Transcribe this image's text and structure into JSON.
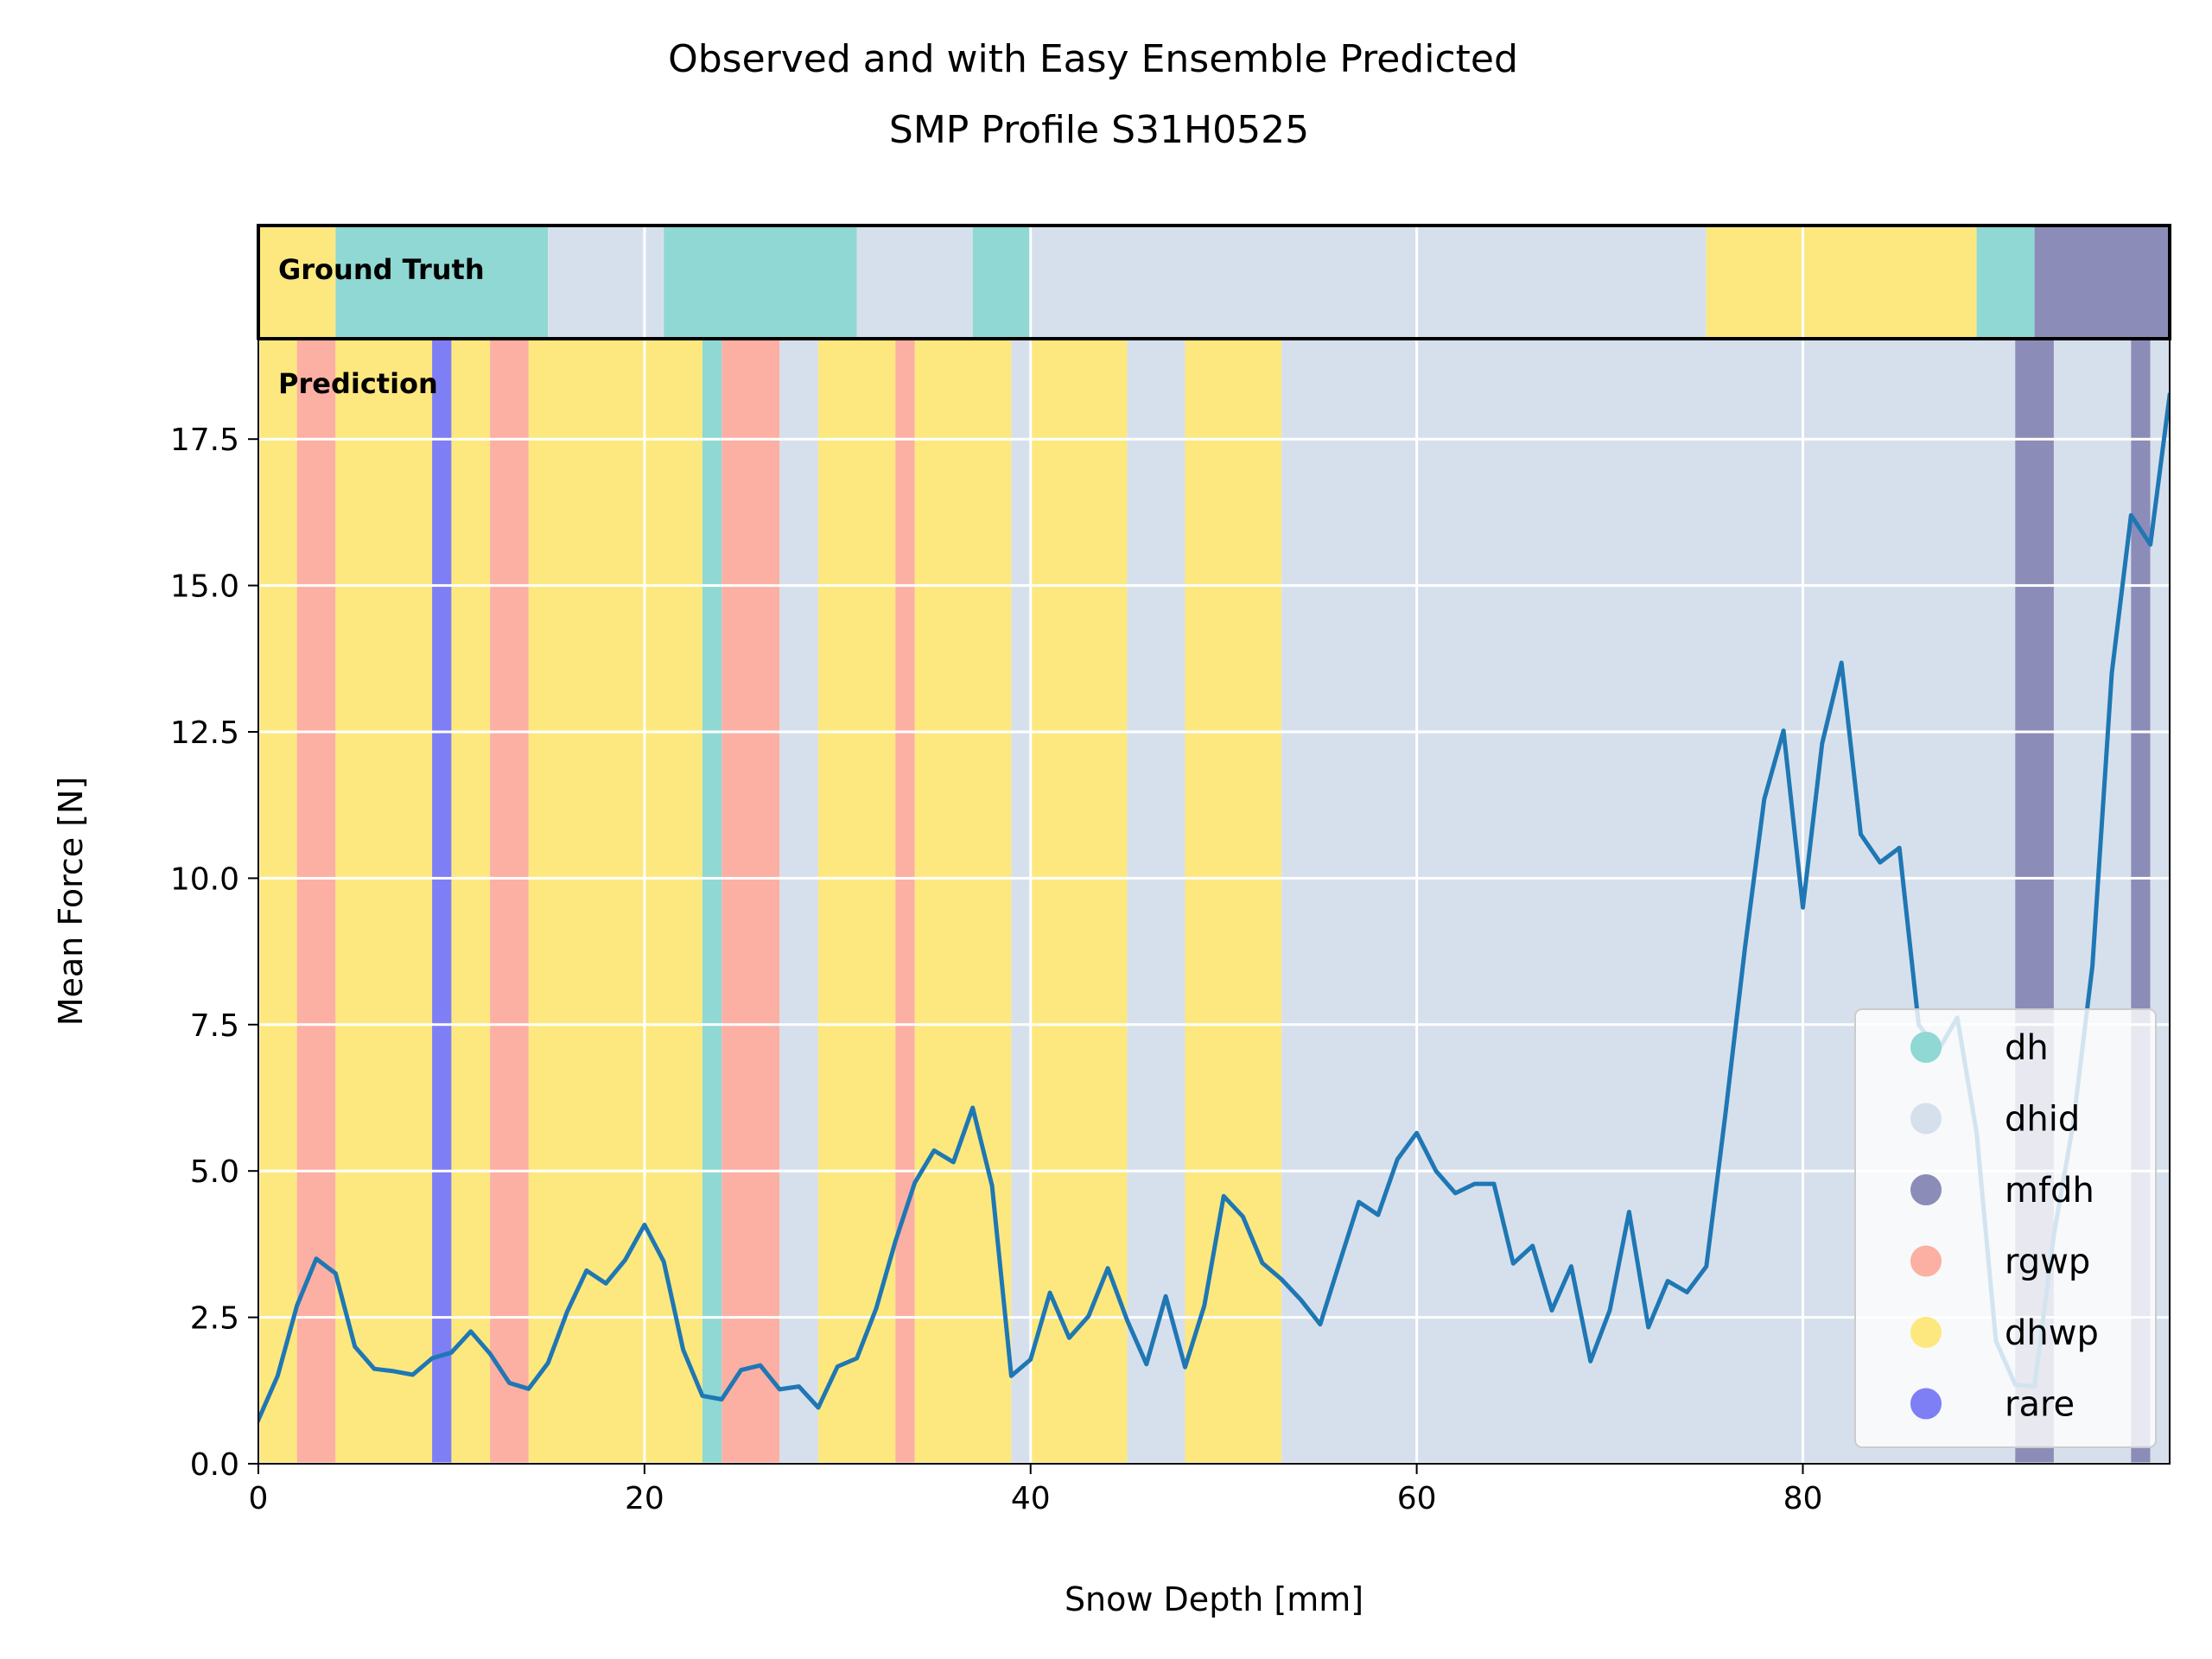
{
  "chart_data": {
    "type": "line",
    "title": "Observed and with Easy Ensemble Predicted\nSMP Profile S31H0525",
    "xlabel": "Snow Depth [mm]",
    "ylabel": "Mean Force [N]",
    "xlim": [
      0,
      99
    ],
    "ylim": [
      0,
      19.2
    ],
    "grid": true,
    "xticks": [
      0,
      20,
      40,
      60,
      80
    ],
    "xtick_labels": [
      "0",
      "20",
      "40",
      "60",
      "80"
    ],
    "yticks": [
      0.0,
      2.5,
      5.0,
      7.5,
      10.0,
      12.5,
      15.0,
      17.5
    ],
    "ytick_labels": [
      "0.0",
      "2.5",
      "5.0",
      "7.5",
      "10.0",
      "12.5",
      "15.0",
      "17.5"
    ],
    "line_color": "#1f77b4",
    "series": [
      {
        "x": [
          0,
          1,
          2,
          3,
          4,
          5,
          6,
          7,
          8,
          9,
          10,
          11,
          12,
          13,
          14,
          15,
          16,
          17,
          18,
          19,
          20,
          21,
          22,
          23,
          24,
          25,
          26,
          27,
          28,
          29,
          30,
          31,
          32,
          33,
          34,
          35,
          36,
          37,
          38,
          39,
          40,
          41,
          42,
          43,
          44,
          45,
          46,
          47,
          48,
          49,
          50,
          51,
          52,
          53,
          54,
          55,
          56,
          57,
          58,
          59,
          60,
          61,
          62,
          63,
          64,
          65,
          66,
          67,
          68,
          69,
          70,
          71,
          72,
          73,
          74,
          75,
          76,
          77,
          78,
          79,
          80,
          81,
          82,
          83,
          84,
          85,
          86,
          87,
          88,
          89,
          90,
          91,
          92,
          93,
          94,
          95,
          96,
          97,
          98,
          99
        ],
        "values": [
          0.75,
          1.5,
          2.7,
          3.5,
          3.25,
          2.0,
          1.62,
          1.58,
          1.52,
          1.8,
          1.9,
          2.26,
          1.88,
          1.38,
          1.28,
          1.72,
          2.6,
          3.3,
          3.08,
          3.48,
          4.08,
          3.45,
          1.95,
          1.16,
          1.1,
          1.6,
          1.68,
          1.27,
          1.32,
          0.96,
          1.66,
          1.8,
          2.65,
          3.8,
          4.8,
          5.35,
          5.15,
          6.08,
          4.75,
          1.5,
          1.78,
          2.92,
          2.15,
          2.52,
          3.34,
          2.45,
          1.7,
          2.86,
          1.65,
          2.7,
          4.57,
          4.22,
          3.43,
          3.15,
          2.8,
          2.38,
          3.43,
          4.47,
          4.25,
          5.2,
          5.65,
          5.0,
          4.62,
          4.78,
          4.78,
          3.42,
          3.72,
          2.62,
          3.37,
          1.75,
          2.62,
          4.3,
          2.33,
          3.12,
          2.93,
          3.37,
          6.0,
          8.8,
          11.35,
          12.52,
          9.5,
          12.3,
          13.68,
          10.75,
          10.27,
          10.52,
          7.5,
          7.05,
          7.62,
          5.65,
          2.1,
          1.35,
          1.32,
          3.9,
          5.8,
          8.5,
          13.5,
          16.2,
          15.7,
          18.25
        ]
      }
    ],
    "panels": {
      "ground_truth_label": "Ground Truth",
      "prediction_label": "Prediction"
    },
    "class_colors": {
      "dh": "#8fd8d3",
      "dhid": "#d6e0ec",
      "mfdh": "#8c8cb8",
      "rgwp": "#fcafa3",
      "dhwp": "#fde87f",
      "rare": "#7e7ef5"
    },
    "ground_truth_segments": [
      {
        "start": 0,
        "end": 4,
        "class": "dhwp"
      },
      {
        "start": 4,
        "end": 15,
        "class": "dh"
      },
      {
        "start": 15,
        "end": 21,
        "class": "dhid"
      },
      {
        "start": 21,
        "end": 31,
        "class": "dh"
      },
      {
        "start": 31,
        "end": 37,
        "class": "dhid"
      },
      {
        "start": 37,
        "end": 40,
        "class": "dh"
      },
      {
        "start": 40,
        "end": 75,
        "class": "dhid"
      },
      {
        "start": 75,
        "end": 89,
        "class": "dhwp"
      },
      {
        "start": 89,
        "end": 92,
        "class": "dh"
      },
      {
        "start": 92,
        "end": 99,
        "class": "mfdh"
      }
    ],
    "prediction_segments": [
      {
        "start": 0,
        "end": 2,
        "class": "dhwp"
      },
      {
        "start": 2,
        "end": 4,
        "class": "rgwp"
      },
      {
        "start": 4,
        "end": 9,
        "class": "dhwp"
      },
      {
        "start": 9,
        "end": 10,
        "class": "rare"
      },
      {
        "start": 10,
        "end": 12,
        "class": "dhwp"
      },
      {
        "start": 12,
        "end": 14,
        "class": "rgwp"
      },
      {
        "start": 14,
        "end": 23,
        "class": "dhwp"
      },
      {
        "start": 23,
        "end": 24,
        "class": "dh"
      },
      {
        "start": 24,
        "end": 27,
        "class": "rgwp"
      },
      {
        "start": 27,
        "end": 29,
        "class": "dhid"
      },
      {
        "start": 29,
        "end": 33,
        "class": "dhwp"
      },
      {
        "start": 33,
        "end": 34,
        "class": "rgwp"
      },
      {
        "start": 34,
        "end": 39,
        "class": "dhwp"
      },
      {
        "start": 39,
        "end": 40,
        "class": "dhid"
      },
      {
        "start": 40,
        "end": 45,
        "class": "dhwp"
      },
      {
        "start": 45,
        "end": 48,
        "class": "dhid"
      },
      {
        "start": 48,
        "end": 53,
        "class": "dhwp"
      },
      {
        "start": 53,
        "end": 91,
        "class": "dhid"
      },
      {
        "start": 91,
        "end": 93,
        "class": "mfdh"
      },
      {
        "start": 93,
        "end": 97,
        "class": "dhid"
      },
      {
        "start": 97,
        "end": 98,
        "class": "mfdh"
      },
      {
        "start": 98,
        "end": 99,
        "class": "dhid"
      }
    ],
    "legend": {
      "placement": "lower-right",
      "entries": [
        "dh",
        "dhid",
        "mfdh",
        "rgwp",
        "dhwp",
        "rare"
      ]
    }
  }
}
